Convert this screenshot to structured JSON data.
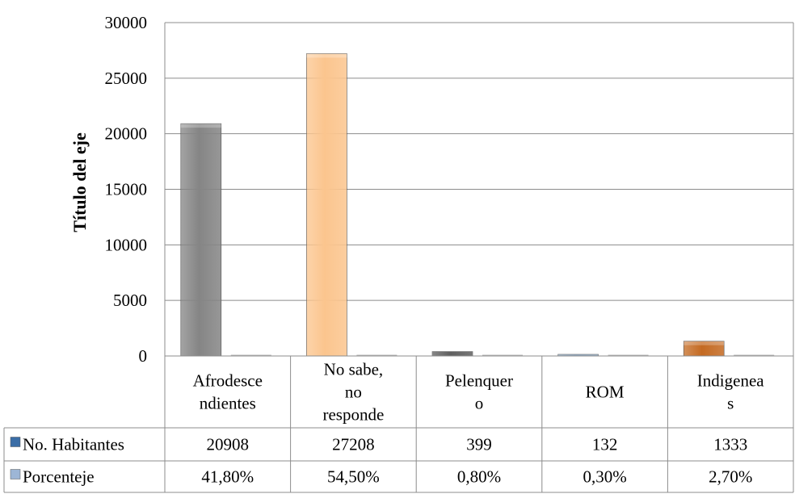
{
  "chart_data": {
    "type": "bar",
    "ylabel": "Título del eje",
    "ylim": [
      0,
      30000
    ],
    "yticks": [
      0,
      5000,
      10000,
      15000,
      20000,
      25000,
      30000
    ],
    "grid": true,
    "legend": "data-table-left",
    "categories": [
      [
        "Afrodesce",
        "ndientes"
      ],
      [
        "No sabe,",
        "no",
        "responde"
      ],
      [
        "Pelenquer",
        "o"
      ],
      [
        "ROM"
      ],
      [
        "Indigenea",
        "s"
      ]
    ],
    "bar_colors": [
      "#858585",
      "#fbc58e",
      "#2a2a2a",
      "#6a8fb2",
      "#c46a22"
    ],
    "series": [
      {
        "name": "No. Habitantes",
        "values": [
          20908,
          27208,
          399,
          132,
          1333
        ],
        "labels": [
          "20908",
          "27208",
          "399",
          "132",
          "1333"
        ],
        "legend_color": "#3a6da6"
      },
      {
        "name": "Porcenteje",
        "values": [
          41.8,
          54.5,
          0.8,
          0.3,
          2.7
        ],
        "labels": [
          "41,80%",
          "54,50%",
          "0,80%",
          "0,30%",
          "2,70%"
        ],
        "legend_color": "#9db6d6"
      }
    ]
  }
}
